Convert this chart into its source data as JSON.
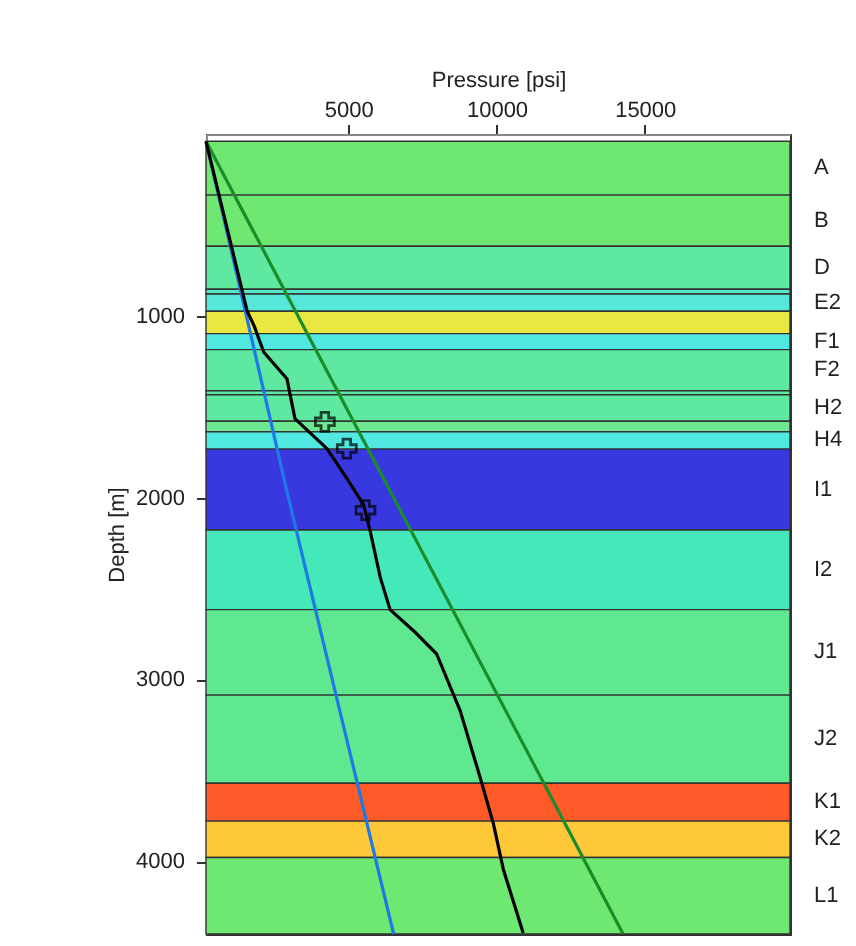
{
  "chart_data": {
    "type": "line",
    "xlabel": "Pressure [psi]",
    "ylabel": "Depth [m]",
    "xlim": [
      200,
      19900
    ],
    "ylim": [
      4400,
      0
    ],
    "xticks": [
      5000,
      10000,
      15000
    ],
    "yticks": [
      1000,
      2000,
      3000,
      4000
    ],
    "grid": false,
    "bands": [
      {
        "axis": "y",
        "from": 40,
        "to": 336,
        "label": "A",
        "color": "#6ee870"
      },
      {
        "axis": "y",
        "from": 336,
        "to": 617,
        "label": "B",
        "color": "#6ee870"
      },
      {
        "axis": "y",
        "from": 617,
        "to": 854,
        "label": "D",
        "color": "#5ee8a0"
      },
      {
        "axis": "y",
        "from": 854,
        "to": 880,
        "color": "#55e8c8"
      },
      {
        "axis": "y",
        "from": 880,
        "to": 975,
        "label": "E2",
        "color": "#55e8d8"
      },
      {
        "axis": "y",
        "from": 975,
        "to": 1098,
        "color": "#e8e840"
      },
      {
        "axis": "y",
        "from": 1098,
        "to": 1186,
        "label": "F1",
        "color": "#50e8e0"
      },
      {
        "axis": "y",
        "from": 1186,
        "to": 1412,
        "label": "F2",
        "color": "#5ee8a0"
      },
      {
        "axis": "y",
        "from": 1412,
        "to": 1434,
        "color": "#5ee8a0"
      },
      {
        "axis": "y",
        "from": 1434,
        "to": 1580,
        "label": "H2",
        "color": "#5ee8a0"
      },
      {
        "axis": "y",
        "from": 1580,
        "to": 1638,
        "color": "#6ee890"
      },
      {
        "axis": "y",
        "from": 1638,
        "to": 1733,
        "label": "H4",
        "color": "#50e8e0"
      },
      {
        "axis": "y",
        "from": 1733,
        "to": 2178,
        "label": "I1",
        "color": "#3838e0"
      },
      {
        "axis": "y",
        "from": 2178,
        "to": 2616,
        "label": "I2",
        "color": "#45e8b8"
      },
      {
        "axis": "y",
        "from": 2616,
        "to": 3086,
        "label": "J1",
        "color": "#60e890"
      },
      {
        "axis": "y",
        "from": 3086,
        "to": 3571,
        "label": "J2",
        "color": "#60e890"
      },
      {
        "axis": "y",
        "from": 3571,
        "to": 3779,
        "label": "K1",
        "color": "#ff5a28"
      },
      {
        "axis": "y",
        "from": 3779,
        "to": 3979,
        "label": "K2",
        "color": "#ffc838"
      },
      {
        "axis": "y",
        "from": 3979,
        "to": 4400,
        "label": "L1",
        "color": "#6ee870"
      }
    ],
    "series": [
      {
        "color": "#1e78e6",
        "x": [
          200,
          2980,
          6530
        ],
        "values": [
          40,
          2000,
          4400
        ]
      },
      {
        "color": "#1a8c2a",
        "x": [
          200,
          6530,
          14270
        ],
        "values": [
          40,
          2000,
          4400
        ]
      },
      {
        "color": "#000000",
        "x": [
          200,
          1590,
          1820,
          2150,
          2930,
          3200,
          4280,
          4950,
          5520,
          5740,
          6080,
          6410,
          7200,
          7980,
          8770,
          9440,
          9890,
          10230,
          10900
        ],
        "values": [
          40,
          975,
          1054,
          1200,
          1346,
          1565,
          1730,
          1894,
          2040,
          2185,
          2440,
          2616,
          2732,
          2860,
          3170,
          3535,
          3790,
          4045,
          4395
        ]
      },
      {
        "type": "scatter",
        "marker": "cross",
        "color": "#000000",
        "x": [
          4210,
          4950,
          5580
        ],
        "values": [
          1583,
          1730,
          2069
        ]
      }
    ]
  }
}
